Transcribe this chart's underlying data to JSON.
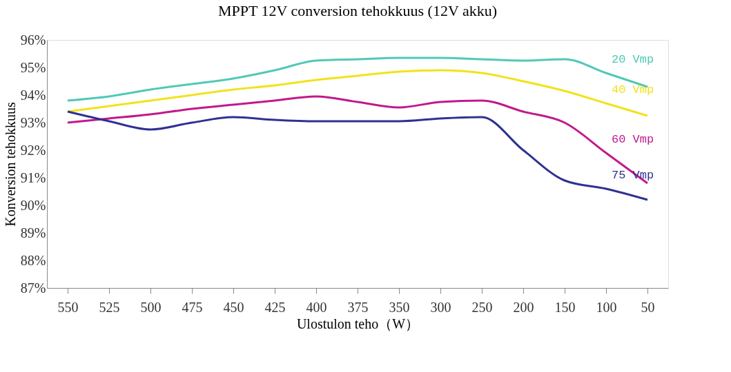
{
  "chart_data": {
    "type": "line",
    "title": "MPPT 12V conversion tehokkuus (12V akku)",
    "xlabel": "Ulostulon teho（W）",
    "ylabel": "Konversion tehokkuus",
    "categories": [
      "550",
      "525",
      "500",
      "475",
      "450",
      "425",
      "400",
      "375",
      "350",
      "300",
      "250",
      "200",
      "150",
      "100",
      "50"
    ],
    "ylim": [
      87,
      96
    ],
    "yticks": [
      {
        "value": 87,
        "label": "87%"
      },
      {
        "value": 88,
        "label": "88%"
      },
      {
        "value": 89,
        "label": "89%"
      },
      {
        "value": 90,
        "label": "90%"
      },
      {
        "value": 91,
        "label": "91%"
      },
      {
        "value": 92,
        "label": "92%"
      },
      {
        "value": 93,
        "label": "93%"
      },
      {
        "value": 94,
        "label": "94%"
      },
      {
        "value": 95,
        "label": "95%"
      },
      {
        "value": 96,
        "label": "96%"
      }
    ],
    "grid": false,
    "legend": false,
    "marker": "none",
    "line_style": "solid",
    "series": [
      {
        "name": "20 Vmp",
        "color": "#4fc9b6",
        "values": [
          93.8,
          93.95,
          94.2,
          94.4,
          94.6,
          94.9,
          95.25,
          95.3,
          95.35,
          95.35,
          95.3,
          95.25,
          95.3,
          94.8,
          94.3
        ]
      },
      {
        "name": "40 Vmp",
        "color": "#f2e21c",
        "values": [
          93.4,
          93.6,
          93.8,
          94.0,
          94.2,
          94.35,
          94.55,
          94.7,
          94.85,
          94.9,
          94.8,
          94.5,
          94.15,
          93.7,
          93.25
        ]
      },
      {
        "name": "60 Vmp",
        "color": "#c0198c",
        "values": [
          93.0,
          93.15,
          93.3,
          93.5,
          93.65,
          93.8,
          93.95,
          93.75,
          93.55,
          93.75,
          93.8,
          93.4,
          93.0,
          91.9,
          90.8
        ]
      },
      {
        "name": "75 Vmp",
        "color": "#2e3192",
        "values": [
          93.4,
          93.05,
          92.75,
          93.0,
          93.2,
          93.1,
          93.05,
          93.05,
          93.05,
          93.15,
          93.2,
          92.0,
          90.9,
          90.6,
          90.2
        ]
      }
    ]
  }
}
